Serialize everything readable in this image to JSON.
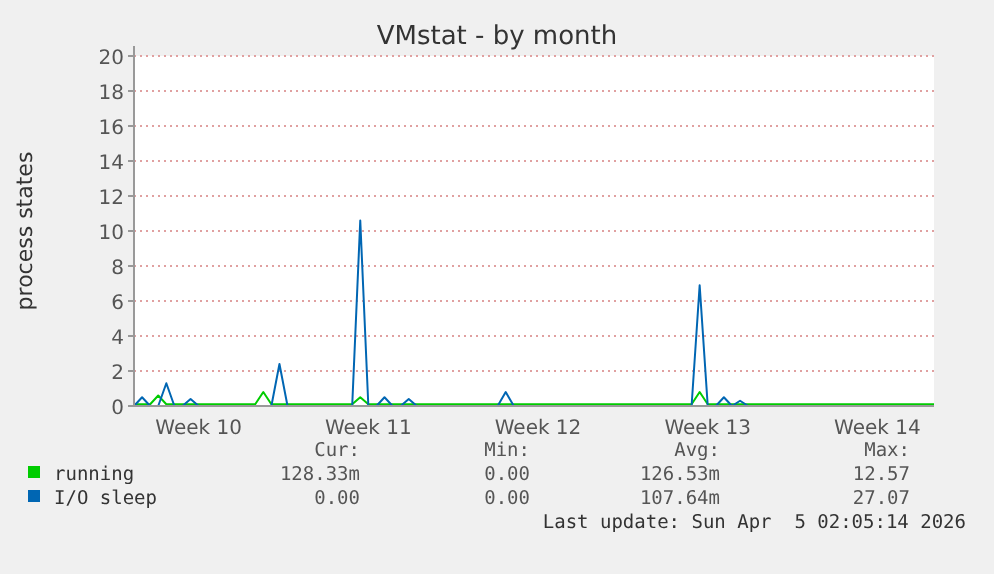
{
  "chart_data": {
    "type": "line",
    "title": "VMstat - by month",
    "ylabel": "process states",
    "categories": [
      null,
      null,
      null,
      null,
      null,
      null,
      null,
      null,
      "Week 10",
      null,
      null,
      null,
      null,
      null,
      null,
      null,
      null,
      null,
      null,
      null,
      null,
      null,
      null,
      null,
      null,
      null,
      null,
      null,
      null,
      "Week 11",
      null,
      null,
      null,
      null,
      null,
      null,
      null,
      null,
      null,
      null,
      null,
      null,
      null,
      null,
      null,
      null,
      null,
      null,
      null,
      null,
      "Week 12",
      null,
      null,
      null,
      null,
      null,
      null,
      null,
      null,
      null,
      null,
      null,
      null,
      null,
      null,
      null,
      null,
      null,
      null,
      null,
      null,
      "Week 13",
      null,
      null,
      null,
      null,
      null,
      null,
      null,
      null,
      null,
      null,
      null,
      null,
      null,
      null,
      null,
      null,
      null,
      null,
      null,
      null,
      "Week 14",
      null,
      null,
      null,
      null,
      null,
      null,
      null
    ],
    "ylim": [
      0,
      20
    ],
    "yticks": [
      0,
      2,
      4,
      6,
      8,
      10,
      12,
      14,
      16,
      18,
      20
    ],
    "grid": "y",
    "legend": "bottom left",
    "series": [
      {
        "name": "running",
        "color": "#00cc00",
        "values": [
          0.1,
          0.1,
          0.1,
          0.6,
          0.1,
          0.1,
          0.1,
          0.1,
          0.1,
          0.1,
          0.1,
          0.1,
          0.1,
          0.1,
          0.1,
          0.1,
          0.8,
          0.1,
          0.1,
          0.1,
          0.1,
          0.1,
          0.1,
          0.1,
          0.1,
          0.1,
          0.1,
          0.1,
          0.5,
          0.1,
          0.1,
          0.1,
          0.1,
          0.1,
          0.1,
          0.1,
          0.1,
          0.1,
          0.1,
          0.1,
          0.1,
          0.1,
          0.1,
          0.1,
          0.1,
          0.1,
          0.1,
          0.1,
          0.1,
          0.1,
          0.1,
          0.1,
          0.1,
          0.1,
          0.1,
          0.1,
          0.1,
          0.1,
          0.1,
          0.1,
          0.1,
          0.1,
          0.1,
          0.1,
          0.1,
          0.1,
          0.1,
          0.1,
          0.1,
          0.1,
          0.8,
          0.1,
          0.1,
          0.1,
          0.1,
          0.1,
          0.1,
          0.1,
          0.1,
          0.1,
          0.1,
          0.1,
          0.1,
          0.1,
          0.1,
          0.1,
          0.1,
          0.1,
          0.1,
          0.1,
          0.1,
          0.1,
          0.1,
          0.1,
          0.1,
          0.1,
          0.1,
          0.1,
          0.1,
          0.1
        ]
      },
      {
        "name": "I/O sleep",
        "color": "#0066b3",
        "values": [
          0,
          0.5,
          0,
          0,
          1.3,
          0,
          0,
          0.4,
          0,
          null,
          null,
          null,
          null,
          null,
          null,
          null,
          null,
          0,
          2.4,
          0,
          null,
          null,
          null,
          null,
          null,
          null,
          null,
          0,
          10.6,
          0,
          0,
          0.5,
          0,
          0,
          0.4,
          0,
          null,
          null,
          null,
          null,
          null,
          null,
          null,
          null,
          null,
          0,
          0.8,
          0,
          null,
          null,
          null,
          null,
          null,
          null,
          null,
          null,
          null,
          null,
          null,
          null,
          null,
          null,
          null,
          null,
          null,
          null,
          null,
          null,
          null,
          0,
          6.9,
          0,
          0,
          0.5,
          0,
          0.3,
          0,
          null,
          null,
          null,
          null,
          null,
          null,
          null,
          null,
          null,
          null,
          null,
          null,
          null,
          null,
          null,
          null,
          null,
          null,
          null,
          null,
          null,
          null,
          null
        ]
      }
    ],
    "annotations": [
      "Cur:",
      "Min:",
      "Avg:",
      "Max:",
      "128.33m",
      "0.00",
      "126.53m",
      "12.57",
      "0.00",
      "0.00",
      "107.64m",
      "27.07",
      "Last update: Sun Apr  5 02:05:14 2026"
    ]
  }
}
